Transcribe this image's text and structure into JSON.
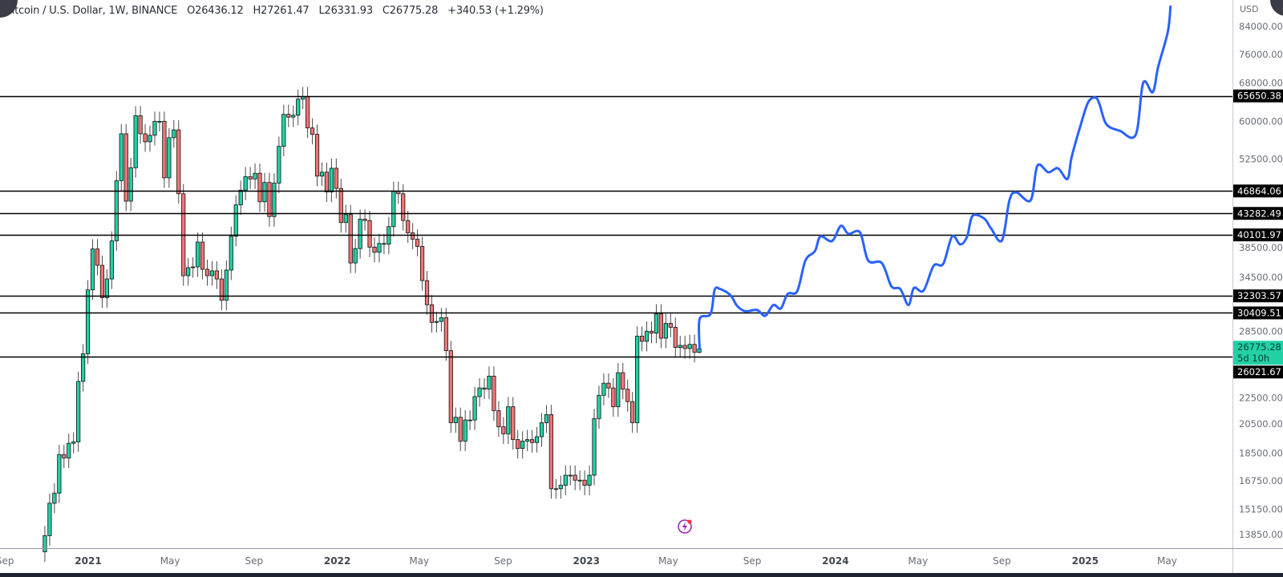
{
  "header": {
    "symbol": "Bitcoin / U.S. Dollar, 1W, BINANCE",
    "open_label": "O",
    "open": "26436.12",
    "high_label": "H",
    "high": "27261.47",
    "low_label": "L",
    "low": "26331.93",
    "close_label": "C",
    "close": "26775.28",
    "change": "+340.53 (+1.29%)"
  },
  "axis": {
    "currency": "USD",
    "price_ticks": [
      "84000.00",
      "76000.00",
      "68000.00",
      "60000.00",
      "52500.00",
      "38500.00",
      "34500.00",
      "28500.00",
      "22500.00",
      "20500.00",
      "18500.00",
      "16750.00",
      "15150.00",
      "13850.00"
    ],
    "time_ticks": [
      {
        "label": "Sep",
        "date": "2020-09-01",
        "bold": false
      },
      {
        "label": "2021",
        "date": "2021-01-01",
        "bold": true
      },
      {
        "label": "May",
        "date": "2021-05-01",
        "bold": false
      },
      {
        "label": "Sep",
        "date": "2021-09-01",
        "bold": false
      },
      {
        "label": "2022",
        "date": "2022-01-01",
        "bold": true
      },
      {
        "label": "May",
        "date": "2022-05-01",
        "bold": false
      },
      {
        "label": "Sep",
        "date": "2022-09-01",
        "bold": false
      },
      {
        "label": "2023",
        "date": "2023-01-01",
        "bold": true
      },
      {
        "label": "May",
        "date": "2023-05-01",
        "bold": false
      },
      {
        "label": "Sep",
        "date": "2023-09-01",
        "bold": false
      },
      {
        "label": "2024",
        "date": "2024-01-01",
        "bold": true
      },
      {
        "label": "May",
        "date": "2024-05-01",
        "bold": false
      },
      {
        "label": "Sep",
        "date": "2024-09-01",
        "bold": false
      },
      {
        "label": "2025",
        "date": "2025-01-01",
        "bold": true
      },
      {
        "label": "May",
        "date": "2025-05-01",
        "bold": false
      }
    ]
  },
  "current_price": {
    "value": "26775.28",
    "countdown": "5d 10h",
    "color": "#22d1a5"
  },
  "indicator_icon": "lightning-icon",
  "chart_data": {
    "type": "candlestick",
    "title": "Bitcoin / U.S. Dollar, 1W, BINANCE",
    "y_scale": "log",
    "ylim": [
      13000,
      90000
    ],
    "xlim": [
      "2020-08-25",
      "2025-07-15"
    ],
    "grid": false,
    "colors": {
      "up": "#22d1a5",
      "down": "#f07575",
      "projection": "#2962ff",
      "level": "#000000"
    },
    "candles": {
      "first_week": "2020-10-26",
      "first_open": 13030,
      "closes": [
        13800,
        15480,
        16050,
        18400,
        18180,
        19150,
        19250,
        23850,
        26300,
        33000,
        38150,
        36000,
        32100,
        34300,
        39250,
        48600,
        57400,
        45200,
        50900,
        61200,
        57400,
        55800,
        57100,
        60000,
        60000,
        49100,
        56600,
        58200,
        46400,
        34700,
        35700,
        35800,
        39100,
        35500,
        34700,
        35300,
        34300,
        31800,
        35400,
        39900,
        44600,
        47000,
        49300,
        48900,
        49900,
        45100,
        48300,
        42800,
        48200,
        54900,
        61500,
        60900,
        61300,
        64900,
        65500,
        58600,
        57300,
        49400,
        50100,
        46700,
        50800,
        47300,
        41900,
        43100,
        36300,
        38200,
        42400,
        42200,
        38400,
        37700,
        38900,
        38800,
        41300,
        46800,
        46400,
        42200,
        40400,
        39500,
        38500,
        34100,
        31300,
        29400,
        29500,
        29900,
        26600,
        20600,
        21000,
        19300,
        20800,
        20800,
        22600,
        23300,
        23200,
        24300,
        21500,
        20300,
        19800,
        21800,
        19400,
        18800,
        19300,
        19400,
        19200,
        19600,
        20600,
        21200,
        16300,
        16300,
        16500,
        17100,
        17100,
        16800,
        16800,
        16500,
        17100,
        20900,
        22700,
        23700,
        23300,
        21800,
        24600,
        23200,
        22200,
        20600,
        28000,
        27500,
        28500,
        28300,
        30300,
        27800,
        29300,
        28900,
        26900,
        27100,
        26800,
        27200,
        26436.12,
        26775.28
      ],
      "last": {
        "open": 26436.12,
        "high": 27261.47,
        "low": 26331.93,
        "close": 26775.28
      }
    },
    "levels": [
      "65650.38",
      "46864.06",
      "43282.49",
      "40101.97",
      "32303.57",
      "30409.51",
      "26021.67"
    ],
    "projection": [
      [
        "2023-06-16",
        26775
      ],
      [
        "2023-06-16",
        29760
      ],
      [
        "2023-07-02",
        30300
      ],
      [
        "2023-07-08",
        33000
      ],
      [
        "2023-07-16",
        33100
      ],
      [
        "2023-07-31",
        32400
      ],
      [
        "2023-08-10",
        31170
      ],
      [
        "2023-08-22",
        30590
      ],
      [
        "2023-09-08",
        30730
      ],
      [
        "2023-09-20",
        30100
      ],
      [
        "2023-10-02",
        31270
      ],
      [
        "2023-10-13",
        30890
      ],
      [
        "2023-10-23",
        32530
      ],
      [
        "2023-11-06",
        32850
      ],
      [
        "2023-11-18",
        36620
      ],
      [
        "2023-12-02",
        37870
      ],
      [
        "2023-12-10",
        39880
      ],
      [
        "2023-12-27",
        39240
      ],
      [
        "2024-01-09",
        41420
      ],
      [
        "2024-01-20",
        40260
      ],
      [
        "2024-02-06",
        40460
      ],
      [
        "2024-02-18",
        36620
      ],
      [
        "2024-03-09",
        36290
      ],
      [
        "2024-03-23",
        33420
      ],
      [
        "2024-04-05",
        33100
      ],
      [
        "2024-04-17",
        31270
      ],
      [
        "2024-04-25",
        33220
      ],
      [
        "2024-05-09",
        32900
      ],
      [
        "2024-05-24",
        35940
      ],
      [
        "2024-06-07",
        36190
      ],
      [
        "2024-06-20",
        39880
      ],
      [
        "2024-07-02",
        38770
      ],
      [
        "2024-07-12",
        39880
      ],
      [
        "2024-07-20",
        42910
      ],
      [
        "2024-08-06",
        42500
      ],
      [
        "2024-08-16",
        41040
      ],
      [
        "2024-09-01",
        39320
      ],
      [
        "2024-09-12",
        45330
      ],
      [
        "2024-09-22",
        46640
      ],
      [
        "2024-10-13",
        45330
      ],
      [
        "2024-10-23",
        51270
      ],
      [
        "2024-11-08",
        50080
      ],
      [
        "2024-11-22",
        50790
      ],
      [
        "2024-12-06",
        48900
      ],
      [
        "2024-12-12",
        52750
      ],
      [
        "2024-12-24",
        58550
      ],
      [
        "2025-01-05",
        64070
      ],
      [
        "2025-01-16",
        65280
      ],
      [
        "2025-01-22",
        63750
      ],
      [
        "2025-02-01",
        59390
      ],
      [
        "2025-02-21",
        58000
      ],
      [
        "2025-03-16",
        57190
      ],
      [
        "2025-03-27",
        68790
      ],
      [
        "2025-04-10",
        66540
      ],
      [
        "2025-04-18",
        72810
      ],
      [
        "2025-05-02",
        82340
      ],
      [
        "2025-05-06",
        90110
      ]
    ]
  }
}
